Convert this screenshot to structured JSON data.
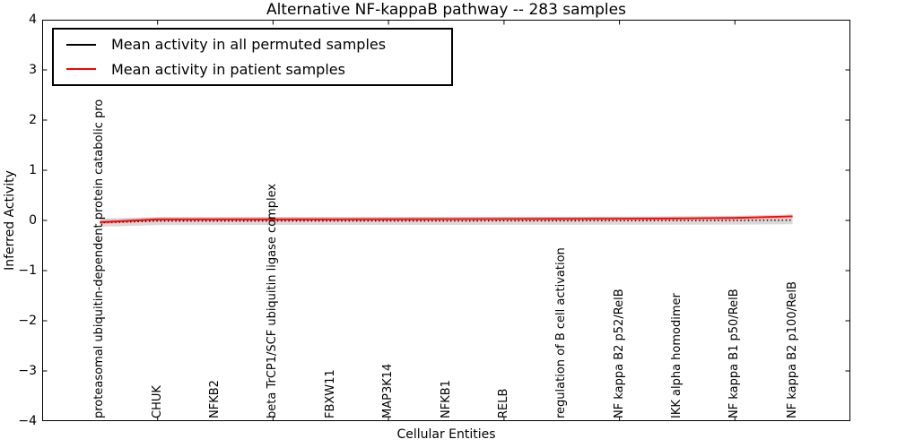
{
  "chart_data": {
    "type": "line",
    "title": "Alternative NF-kappaB pathway -- 283 samples",
    "xlabel": "Cellular Entities",
    "ylabel": "Inferred Activity",
    "ylim": [
      -4,
      4
    ],
    "yticks": [
      4,
      3,
      2,
      1,
      0,
      -1,
      -2,
      -3,
      -4
    ],
    "ytick_labels": [
      "4",
      "3",
      "2",
      "1",
      "0",
      "−1",
      "−2",
      "−3",
      "−4"
    ],
    "grid": false,
    "legend_position": "upper left",
    "categories": [
      "proteasomal ubiquitin-dependent protein catabolic pro",
      "CHUK",
      "NFKB2",
      "beta TrCP1/SCF ubiquitin ligase complex",
      "FBXW11",
      "MAP3K14",
      "NFKB1",
      "RELB",
      "regulation of B cell activation",
      "NF kappa B2 p52/RelB",
      "IKK alpha homodimer",
      "NF kappa B1 p50/RelB",
      "NF kappa B2 p100/RelB"
    ],
    "series": [
      {
        "name": "Mean activity in all permuted samples",
        "color": "#000000",
        "style": "dotted",
        "values": [
          -0.045,
          -0.012,
          -0.012,
          -0.01,
          -0.01,
          -0.01,
          -0.01,
          -0.008,
          -0.008,
          -0.006,
          -0.004,
          -0.002,
          0.005
        ]
      },
      {
        "name": "Mean activity in patient samples",
        "color": "#ff0000",
        "style": "solid",
        "values": [
          -0.035,
          0.022,
          0.022,
          0.022,
          0.022,
          0.024,
          0.026,
          0.028,
          0.03,
          0.034,
          0.04,
          0.05,
          0.082
        ]
      }
    ],
    "band": {
      "color": "#d9d9d9",
      "half_width": 0.08
    }
  }
}
